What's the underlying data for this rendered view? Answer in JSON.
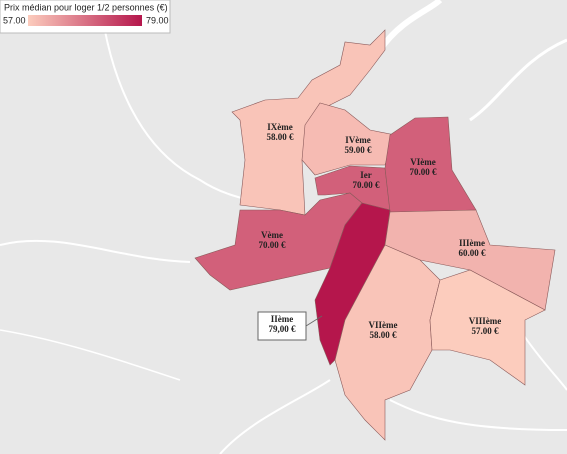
{
  "legend": {
    "title": "Prix médian pour loger 1/2 personnes (€)",
    "min": {
      "value": 57,
      "label": "57.00"
    },
    "max": {
      "value": 79,
      "label": "79.00"
    },
    "colors": [
      "#fcccbd",
      "#b5164c"
    ]
  },
  "districts": [
    {
      "name": "IXème",
      "value": 58,
      "value_label": "58.00 €"
    },
    {
      "name": "IVème",
      "value": 59,
      "value_label": "59.00 €"
    },
    {
      "name": "Ier",
      "value": 70,
      "value_label": "70.00 €"
    },
    {
      "name": "VIème",
      "value": 70,
      "value_label": "70.00 €"
    },
    {
      "name": "Vème",
      "value": 70,
      "value_label": "70.00 €"
    },
    {
      "name": "IIème",
      "value": 79,
      "value_label": "79,00 €"
    },
    {
      "name": "IIIème",
      "value": 60,
      "value_label": "60.00 €"
    },
    {
      "name": "VIIème",
      "value": 58,
      "value_label": "58.00 €"
    },
    {
      "name": "VIIIème",
      "value": 57,
      "value_label": "57.00 €"
    }
  ]
}
